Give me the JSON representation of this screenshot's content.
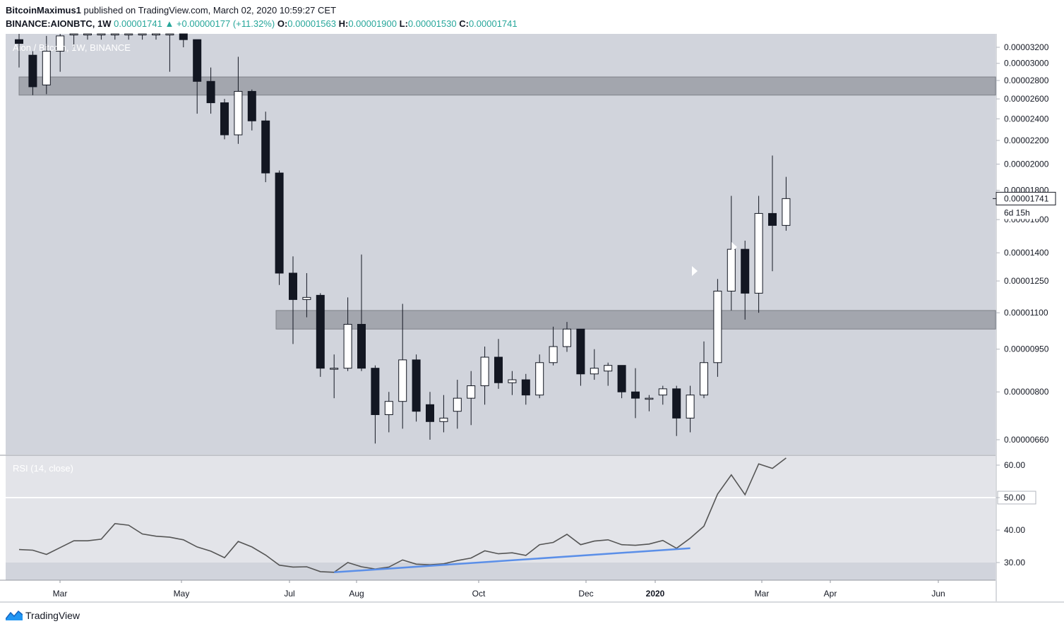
{
  "header": {
    "publisher": "BitcoinMaximus1",
    "published_text": "published on TradingView.com, March 02, 2020 10:59:27 CET",
    "symbol": "BINANCE:AIONBTC, 1W",
    "last": "0.00001741",
    "change": "+0.00000177 (+11.32%)",
    "o_label": "O:",
    "o": "0.00001563",
    "h_label": "H:",
    "h": "0.00001900",
    "l_label": "L:",
    "l": "0.00001530",
    "c_label": "C:",
    "c": "0.00001741"
  },
  "pane_title": "Aion / Bitcoin, 1W, BINANCE",
  "rsi_title": "RSI (14, close)",
  "price_badge": "0.00001741",
  "countdown": "6d 15h",
  "footer_brand": "TradingView",
  "colors": {
    "chart_bg": "#d1d4dc",
    "zone": "#a3a6ae",
    "bear": "#131722",
    "bull": "#ffffff",
    "rsi_line": "#555555",
    "trendline": "#5b8fe8",
    "up": "#26a69a"
  },
  "chart_data": [
    {
      "type": "candlestick",
      "title": "Aion / Bitcoin, 1W, BINANCE",
      "log_scale": true,
      "y_ticks": [
        "0.00003200",
        "0.00003000",
        "0.00002800",
        "0.00002600",
        "0.00002400",
        "0.00002200",
        "0.00002000",
        "0.00001800",
        "0.00001600",
        "0.00001400",
        "0.00001250",
        "0.00001100",
        "0.00000950",
        "0.00000800",
        "0.00000660"
      ],
      "y_tick_values": [
        3200,
        3000,
        2800,
        2600,
        2400,
        2200,
        2000,
        1800,
        1600,
        1400,
        1250,
        1100,
        950,
        800,
        660
      ],
      "x_ticks": [
        "Mar",
        "May",
        "Jul",
        "Aug",
        "Oct",
        "Dec",
        "2020",
        "Mar",
        "Apr",
        "Jun"
      ],
      "resistance_zones": [
        {
          "low": 2640,
          "high": 2840
        },
        {
          "low": 1030,
          "high": 1110
        }
      ],
      "candles": [
        {
          "o": 3300,
          "h": 3600,
          "l": 2950,
          "c": 3250
        },
        {
          "o": 3100,
          "h": 3150,
          "l": 2640,
          "c": 2730
        },
        {
          "o": 2750,
          "h": 3350,
          "l": 2650,
          "c": 3150
        },
        {
          "o": 3150,
          "h": 3400,
          "l": 2900,
          "c": 3350
        },
        {
          "o": 3400,
          "h": 3600,
          "l": 3200,
          "c": 3400
        },
        {
          "o": 3400,
          "h": 3500,
          "l": 3300,
          "c": 3400
        },
        {
          "o": 3400,
          "h": 3500,
          "l": 3300,
          "c": 3400
        },
        {
          "o": 3400,
          "h": 3500,
          "l": 3300,
          "c": 3400
        },
        {
          "o": 3400,
          "h": 3500,
          "l": 3300,
          "c": 3400
        },
        {
          "o": 3400,
          "h": 3500,
          "l": 3300,
          "c": 3400
        },
        {
          "o": 3400,
          "h": 3500,
          "l": 3300,
          "c": 3400
        },
        {
          "o": 3400,
          "h": 3500,
          "l": 2900,
          "c": 3400
        },
        {
          "o": 3450,
          "h": 3600,
          "l": 3200,
          "c": 3300
        },
        {
          "o": 3300,
          "h": 3300,
          "l": 2450,
          "c": 2790
        },
        {
          "o": 2790,
          "h": 2950,
          "l": 2450,
          "c": 2560
        },
        {
          "o": 2560,
          "h": 2600,
          "l": 2210,
          "c": 2250
        },
        {
          "o": 2250,
          "h": 3080,
          "l": 2170,
          "c": 2680
        },
        {
          "o": 2680,
          "h": 2700,
          "l": 2290,
          "c": 2380
        },
        {
          "o": 2380,
          "h": 2470,
          "l": 1860,
          "c": 1930
        },
        {
          "o": 1930,
          "h": 1950,
          "l": 1230,
          "c": 1290
        },
        {
          "o": 1290,
          "h": 1380,
          "l": 970,
          "c": 1160
        },
        {
          "o": 1160,
          "h": 1290,
          "l": 1080,
          "c": 1170
        },
        {
          "o": 1180,
          "h": 1190,
          "l": 850,
          "c": 880
        },
        {
          "o": 880,
          "h": 930,
          "l": 780,
          "c": 880
        },
        {
          "o": 880,
          "h": 1170,
          "l": 870,
          "c": 1050
        },
        {
          "o": 1050,
          "h": 1390,
          "l": 870,
          "c": 880
        },
        {
          "o": 880,
          "h": 890,
          "l": 650,
          "c": 730
        },
        {
          "o": 730,
          "h": 800,
          "l": 680,
          "c": 770
        },
        {
          "o": 770,
          "h": 1140,
          "l": 690,
          "c": 910
        },
        {
          "o": 910,
          "h": 930,
          "l": 710,
          "c": 740
        },
        {
          "o": 760,
          "h": 800,
          "l": 660,
          "c": 710
        },
        {
          "o": 710,
          "h": 790,
          "l": 680,
          "c": 720
        },
        {
          "o": 740,
          "h": 840,
          "l": 690,
          "c": 780
        },
        {
          "o": 780,
          "h": 870,
          "l": 700,
          "c": 820
        },
        {
          "o": 820,
          "h": 960,
          "l": 760,
          "c": 920
        },
        {
          "o": 920,
          "h": 990,
          "l": 810,
          "c": 830
        },
        {
          "o": 830,
          "h": 870,
          "l": 790,
          "c": 840
        },
        {
          "o": 840,
          "h": 860,
          "l": 760,
          "c": 790
        },
        {
          "o": 790,
          "h": 930,
          "l": 780,
          "c": 900
        },
        {
          "o": 900,
          "h": 1040,
          "l": 890,
          "c": 960
        },
        {
          "o": 960,
          "h": 1060,
          "l": 940,
          "c": 1030
        },
        {
          "o": 1030,
          "h": 1030,
          "l": 820,
          "c": 860
        },
        {
          "o": 860,
          "h": 950,
          "l": 840,
          "c": 880
        },
        {
          "o": 870,
          "h": 900,
          "l": 820,
          "c": 890
        },
        {
          "o": 890,
          "h": 890,
          "l": 780,
          "c": 800
        },
        {
          "o": 800,
          "h": 880,
          "l": 720,
          "c": 780
        },
        {
          "o": 780,
          "h": 790,
          "l": 740,
          "c": 780
        },
        {
          "o": 790,
          "h": 820,
          "l": 760,
          "c": 810
        },
        {
          "o": 810,
          "h": 820,
          "l": 670,
          "c": 720
        },
        {
          "o": 720,
          "h": 820,
          "l": 680,
          "c": 790
        },
        {
          "o": 790,
          "h": 980,
          "l": 780,
          "c": 900
        },
        {
          "o": 900,
          "h": 1260,
          "l": 850,
          "c": 1200
        },
        {
          "o": 1200,
          "h": 1760,
          "l": 1110,
          "c": 1420
        },
        {
          "o": 1420,
          "h": 1470,
          "l": 1070,
          "c": 1190
        },
        {
          "o": 1190,
          "h": 1760,
          "l": 1100,
          "c": 1640
        },
        {
          "o": 1640,
          "h": 2070,
          "l": 1300,
          "c": 1563
        },
        {
          "o": 1563,
          "h": 1900,
          "l": 1530,
          "c": 1741
        }
      ]
    },
    {
      "type": "line",
      "title": "RSI (14, close)",
      "y_ticks": [
        "60.00",
        "50.00",
        "40.00",
        "30.00"
      ],
      "y_tick_values": [
        60,
        50,
        40,
        30
      ],
      "levels": [
        50,
        30
      ],
      "values": [
        34,
        33.8,
        32.5,
        34.6,
        36.7,
        36.7,
        37.2,
        42,
        41.5,
        38.8,
        38.1,
        37.8,
        37,
        34.8,
        33.5,
        31.5,
        36.5,
        34.8,
        32.3,
        29.2,
        28.6,
        28.7,
        27.2,
        27,
        30,
        28.7,
        28,
        28.6,
        30.8,
        29.5,
        29.3,
        29.6,
        30.6,
        31.4,
        33.6,
        32.7,
        33,
        32.2,
        35.5,
        36.2,
        38.7,
        35.5,
        36.6,
        37,
        35.5,
        35.3,
        35.7,
        36.8,
        34.4,
        37.5,
        41.2,
        51.1,
        57,
        50.9,
        60.4,
        59,
        62.2
      ],
      "trendlines": [
        {
          "from": {
            "index": 23,
            "value": 27
          },
          "to": {
            "index": 49,
            "value": 34.4
          }
        }
      ]
    }
  ]
}
